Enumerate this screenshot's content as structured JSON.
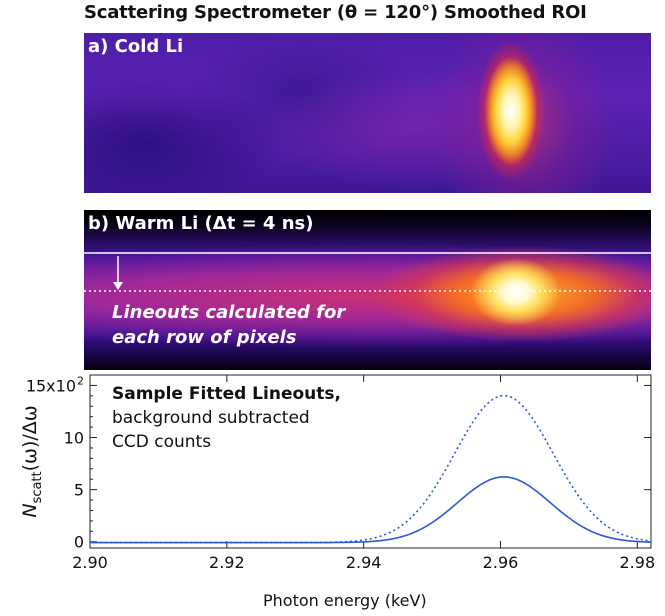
{
  "title": "Scattering Spectrometer (θ = 120°) Smoothed ROI",
  "panel_a": {
    "label": "a) Cold Li"
  },
  "panel_b": {
    "label": "b) Warm Li (Δt = 4 ns)",
    "annotation_line1": "Lineouts calculated for",
    "annotation_line2": "each row of pixels"
  },
  "colors": {
    "curve": "#2a5bd7",
    "axis": "#222222",
    "image_line": "#ffffff"
  },
  "chart_data": {
    "type": "line",
    "title": "",
    "annotation_bold": "Sample Fitted Lineouts,",
    "annotation_line2": "background subtracted",
    "annotation_line3": "CCD counts",
    "xlabel": "Photon energy (keV)",
    "ylabel_prefix": "N",
    "ylabel_sub": "scatt",
    "ylabel_suffix": "(ω)/Δω",
    "xlim": [
      2.9,
      2.982
    ],
    "ylim": [
      -0.6,
      16
    ],
    "x_ticks": [
      {
        "value": 2.9,
        "label": "2.90"
      },
      {
        "value": 2.92,
        "label": "2.92"
      },
      {
        "value": 2.94,
        "label": "2.94"
      },
      {
        "value": 2.96,
        "label": "2.96"
      },
      {
        "value": 2.98,
        "label": "2.98"
      }
    ],
    "y_ticks": [
      {
        "value": 0,
        "label": "0"
      },
      {
        "value": 5,
        "label": "5"
      },
      {
        "value": 10,
        "label": "10"
      },
      {
        "value": 15,
        "label": "15x10"
      }
    ],
    "y_tick_exponent": "2",
    "series": [
      {
        "style": "dotted",
        "amplitude": 14.1,
        "center": 2.9605,
        "sigma": 0.0072,
        "baseline": -0.08
      },
      {
        "style": "solid",
        "amplitude": 6.3,
        "center": 2.9605,
        "sigma": 0.0068,
        "baseline": -0.08
      }
    ]
  }
}
